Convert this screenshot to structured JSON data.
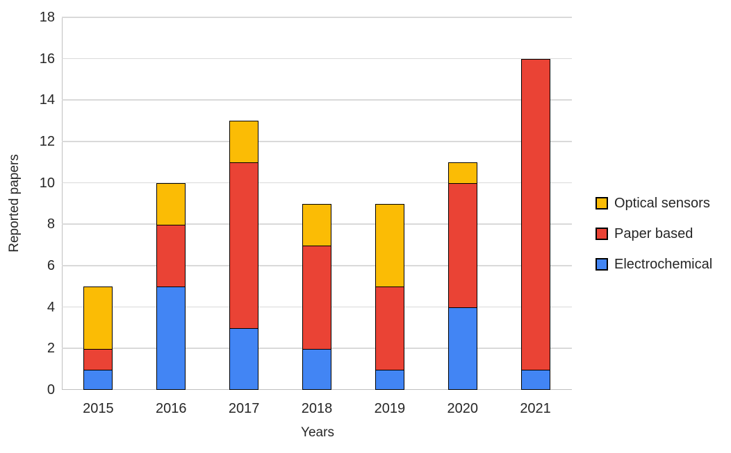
{
  "chart_data": {
    "type": "bar",
    "stacked": true,
    "title": "",
    "xlabel": "Years",
    "ylabel": "Reported papers",
    "categories": [
      "2015",
      "2016",
      "2017",
      "2018",
      "2019",
      "2020",
      "2021"
    ],
    "series": [
      {
        "name": "Electrochemical",
        "color": "#4285F4",
        "values": [
          1,
          5,
          3,
          2,
          1,
          4,
          1
        ]
      },
      {
        "name": "Paper based",
        "color": "#EA4335",
        "values": [
          1,
          3,
          8,
          5,
          4,
          6,
          15
        ]
      },
      {
        "name": "Optical sensors",
        "color": "#FBBC05",
        "values": [
          3,
          2,
          2,
          2,
          4,
          1,
          0
        ]
      }
    ],
    "totals": [
      5,
      10,
      13,
      9,
      9,
      11,
      16
    ],
    "ylim": [
      0,
      18
    ],
    "yticks": [
      0,
      2,
      4,
      6,
      8,
      10,
      12,
      14,
      16,
      18
    ],
    "grid": true,
    "legend_position": "right",
    "legend_order": [
      "Optical sensors",
      "Paper based",
      "Electrochemical"
    ],
    "colors": {
      "bar_border": "#000000",
      "gridline": "#d9d9d9",
      "axis_line": "#bfbfbf",
      "text": "#262626",
      "background": "#ffffff"
    }
  }
}
